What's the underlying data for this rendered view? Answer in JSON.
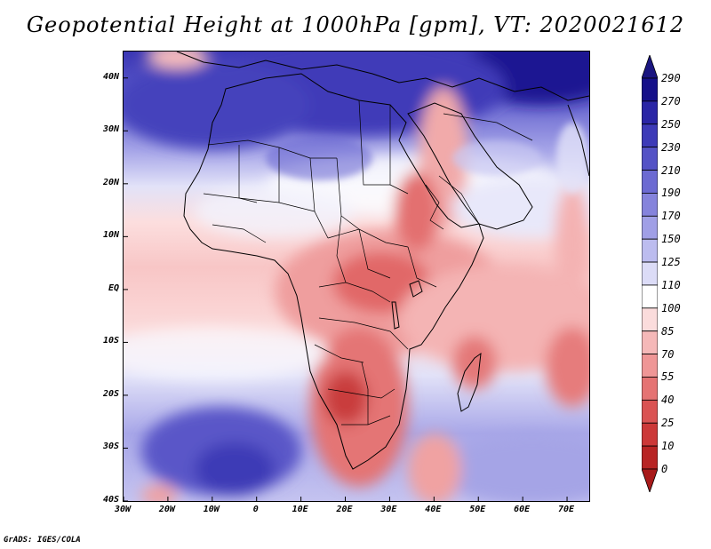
{
  "title": "Geopotential Height at 1000hPa [gpm], VT: 2020021612",
  "credit": "GrADS: IGES/COLA",
  "map": {
    "lon_range": [
      -30,
      75
    ],
    "lat_range": [
      -40,
      45
    ],
    "lat_labels": [
      {
        "lat": 40,
        "text": "40N"
      },
      {
        "lat": 30,
        "text": "30N"
      },
      {
        "lat": 20,
        "text": "20N"
      },
      {
        "lat": 10,
        "text": "10N"
      },
      {
        "lat": 0,
        "text": "EQ"
      },
      {
        "lat": -10,
        "text": "10S"
      },
      {
        "lat": -20,
        "text": "20S"
      },
      {
        "lat": -30,
        "text": "30S"
      },
      {
        "lat": -40,
        "text": "40S"
      }
    ],
    "lon_labels": [
      {
        "lon": -30,
        "text": "30W"
      },
      {
        "lon": -20,
        "text": "20W"
      },
      {
        "lon": -10,
        "text": "10W"
      },
      {
        "lon": 0,
        "text": "0"
      },
      {
        "lon": 10,
        "text": "10E"
      },
      {
        "lon": 20,
        "text": "20E"
      },
      {
        "lon": 30,
        "text": "30E"
      },
      {
        "lon": 40,
        "text": "40E"
      },
      {
        "lon": 50,
        "text": "50E"
      },
      {
        "lon": 60,
        "text": "60E"
      },
      {
        "lon": 70,
        "text": "70E"
      }
    ]
  },
  "colorbar": {
    "labels": [
      "290",
      "270",
      "250",
      "230",
      "210",
      "190",
      "170",
      "150",
      "125",
      "110",
      "100",
      "85",
      "70",
      "55",
      "40",
      "25",
      "10",
      "0"
    ],
    "colors": [
      "#15108a",
      "#2a25a6",
      "#3d3ab8",
      "#5452c6",
      "#6c6ad2",
      "#8583dc",
      "#a09fe6",
      "#bcbcef",
      "#dcdcf7",
      "#ffffff",
      "#fbdcdc",
      "#f5b8b8",
      "#ef9696",
      "#e57373",
      "#da5353",
      "#cc3838",
      "#b82424"
    ],
    "top_arrow_color": "#1a1580",
    "bottom_arrow_color": "#a81a1a"
  }
}
